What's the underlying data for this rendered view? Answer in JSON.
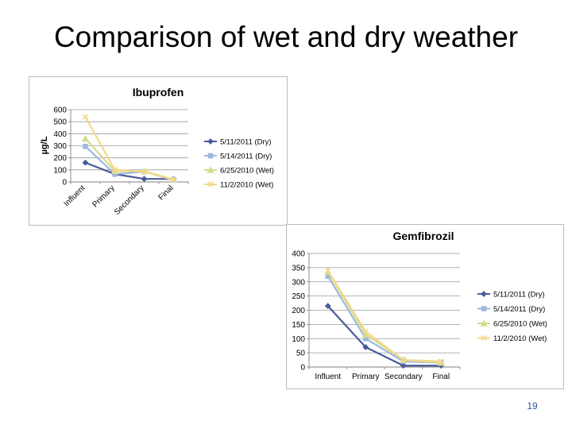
{
  "slide": {
    "title": "Comparison of wet and dry weather",
    "page_number": "19"
  },
  "chart_data": [
    {
      "type": "line",
      "title": "Ibuprofen",
      "ylabel": "µg/L",
      "xlabel": "",
      "categories": [
        "Influent",
        "Primary",
        "Secondary",
        "Final"
      ],
      "ylim": [
        0,
        600
      ],
      "yticks": [
        0,
        100,
        200,
        300,
        400,
        500,
        600
      ],
      "grid": true,
      "legend": "right",
      "series": [
        {
          "name": "5/11/2011 (Dry)",
          "values": [
            160,
            65,
            25,
            25
          ],
          "color": "#4a5b9a",
          "marker": "diamond"
        },
        {
          "name": "5/14/2011 (Dry)",
          "values": [
            295,
            65,
            85,
            15
          ],
          "color": "#9fb8dc",
          "marker": "square"
        },
        {
          "name": "6/25/2010 (Wet)",
          "values": [
            360,
            90,
            90,
            20
          ],
          "color": "#d6db8e",
          "marker": "triangle"
        },
        {
          "name": "11/2/2010 (Wet)",
          "values": [
            540,
            100,
            85,
            20
          ],
          "color": "#f4d98a",
          "marker": "x"
        }
      ]
    },
    {
      "type": "line",
      "title": "Gemfibrozil",
      "ylabel": "",
      "xlabel": "",
      "categories": [
        "Influent",
        "Primary",
        "Secondary",
        "Final"
      ],
      "ylim": [
        0,
        400
      ],
      "yticks": [
        0,
        50,
        100,
        150,
        200,
        250,
        300,
        350,
        400
      ],
      "grid": true,
      "legend": "right",
      "series": [
        {
          "name": "5/11/2011 (Dry)",
          "values": [
            215,
            70,
            5,
            5
          ],
          "color": "#4a5b9a",
          "marker": "diamond"
        },
        {
          "name": "5/14/2011 (Dry)",
          "values": [
            320,
            100,
            20,
            15
          ],
          "color": "#9fb8dc",
          "marker": "square"
        },
        {
          "name": "6/25/2010 (Wet)",
          "values": [
            335,
            115,
            25,
            15
          ],
          "color": "#d6db8e",
          "marker": "triangle"
        },
        {
          "name": "11/2/2010 (Wet)",
          "values": [
            340,
            125,
            25,
            20
          ],
          "color": "#f4d98a",
          "marker": "x"
        }
      ]
    }
  ]
}
